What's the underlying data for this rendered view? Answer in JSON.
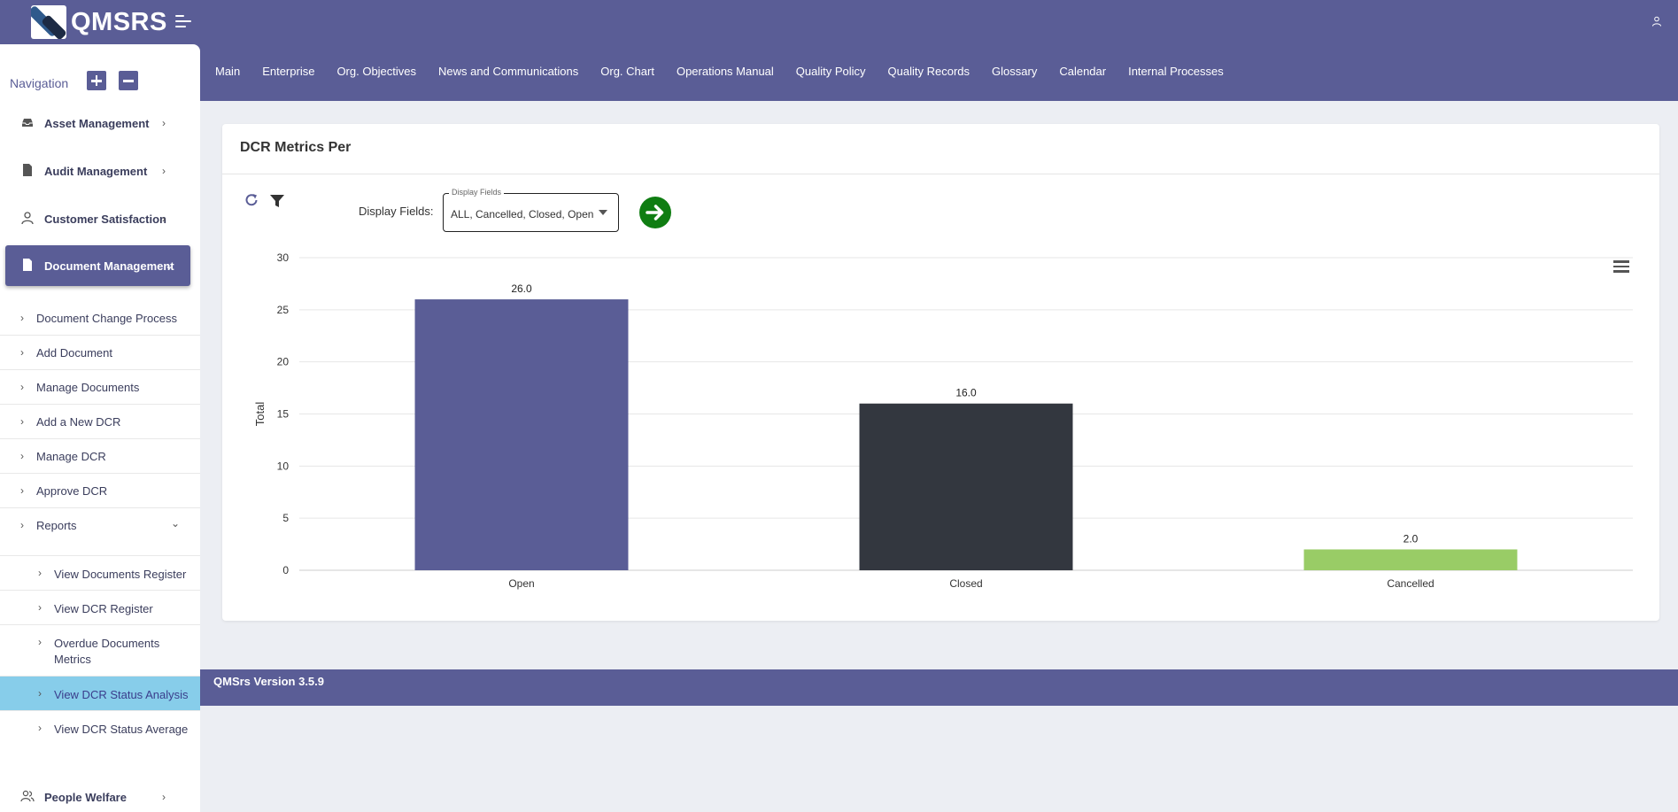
{
  "app": {
    "title": "QMSRS"
  },
  "topnav": [
    "Main",
    "Enterprise",
    "Org. Objectives",
    "News and Communications",
    "Org. Chart",
    "Operations Manual",
    "Quality Policy",
    "Quality Records",
    "Glossary",
    "Calendar",
    "Internal Processes"
  ],
  "sidebar": {
    "heading": "Navigation",
    "modules": {
      "asset": "Asset Management",
      "audit": "Audit Management",
      "customer": "Customer Satisfaction",
      "document": "Document Management",
      "people": "People Welfare"
    },
    "submenu": {
      "dcp": "Document Change Process",
      "add_doc": "Add Document",
      "manage_docs": "Manage Documents",
      "add_dcr": "Add a New DCR",
      "manage_dcr": "Manage DCR",
      "approve_dcr": "Approve DCR",
      "reports": "Reports"
    },
    "reports": {
      "doc_register": "View Documents Register",
      "dcr_register": "View DCR Register",
      "overdue": "Overdue Documents Metrics",
      "status_analysis": "View DCR Status Analysis",
      "status_average": "View DCR Status Average"
    }
  },
  "card": {
    "title": "DCR Metrics Per",
    "display_fields_label": "Display Fields:",
    "display_fields_legend": "Display Fields",
    "display_fields_value": "ALL, Cancelled, Closed, Open"
  },
  "chart_data": {
    "type": "bar",
    "categories": [
      "Open",
      "Closed",
      "Cancelled"
    ],
    "values": [
      26.0,
      16.0,
      2.0
    ],
    "data_labels": [
      "26.0",
      "16.0",
      "2.0"
    ],
    "colors": [
      "#5a5d96",
      "#33373f",
      "#99cc66"
    ],
    "ylabel": "Total",
    "xlabel": "",
    "title": "",
    "ylim": [
      0,
      30
    ],
    "yticks": [
      0,
      5,
      10,
      15,
      20,
      25,
      30
    ],
    "grid": true
  },
  "footer": {
    "version": "QMSrs Version 3.5.9"
  }
}
